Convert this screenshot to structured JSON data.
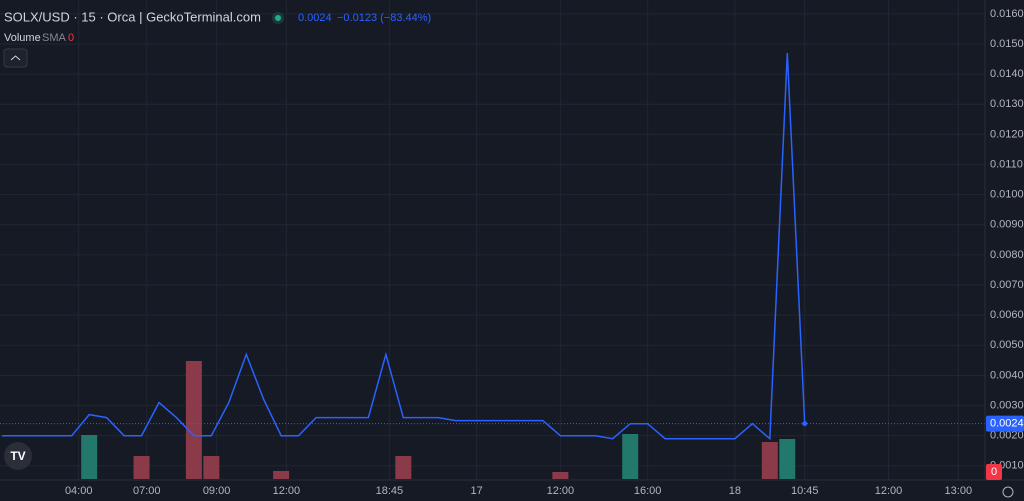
{
  "chart_data": {
    "type": "line",
    "title": "SOLX/USD · 15 · Orca | GeckoTerminal.com",
    "last_value": 0.0024,
    "change_label": "−0.0123 (−83.44%)",
    "volume_label": "Volume",
    "sma_label": "SMA",
    "sma_value": 0,
    "volume_last": 0,
    "x": [
      0,
      4,
      5,
      6,
      7,
      8,
      9,
      10,
      11,
      12,
      13,
      14,
      15,
      16,
      17,
      18,
      19,
      21,
      22,
      23,
      25,
      26,
      30,
      31,
      32,
      34,
      35,
      36,
      37,
      38,
      39,
      42,
      43,
      44,
      45,
      46
    ],
    "series": [
      {
        "color": "#2962ff",
        "values": [
          0.002,
          0.002,
          0.0027,
          0.0026,
          0.002,
          0.002,
          0.0031,
          0.0026,
          0.002,
          0.002,
          0.0031,
          0.0047,
          0.0032,
          0.002,
          0.002,
          0.0026,
          0.0026,
          0.0026,
          0.0047,
          0.0026,
          0.0026,
          0.0025,
          0.0025,
          0.0025,
          0.002,
          0.002,
          0.0019,
          0.0024,
          0.0024,
          0.0019,
          0.0019,
          0.0019,
          0.0024,
          0.0019,
          0.0147,
          0.0024
        ]
      }
    ],
    "volume": {
      "x": [
        5,
        8,
        11,
        12,
        16,
        23,
        32,
        36,
        44,
        45
      ],
      "values": [
        44,
        23,
        118,
        23,
        8,
        23,
        7,
        45,
        37,
        40
      ],
      "colors": [
        "#22786a",
        "#8b3a49",
        "#8b3a49",
        "#8b3a49",
        "#8b3a49",
        "#8b3a49",
        "#8b3a49",
        "#22786a",
        "#8b3a49",
        "#22786a"
      ],
      "vlim": [
        0,
        140
      ]
    },
    "xlim": [
      -0.11,
      56.33
    ],
    "xticks": [
      {
        "value": 4.4,
        "label": "04:00"
      },
      {
        "value": 8.3,
        "label": "07:00"
      },
      {
        "value": 12.3,
        "label": "09:00"
      },
      {
        "value": 16.3,
        "label": "12:00"
      },
      {
        "value": 22.2,
        "label": "18:45"
      },
      {
        "value": 27.2,
        "label": "17"
      },
      {
        "value": 32,
        "label": "12:00"
      },
      {
        "value": 37,
        "label": "16:00"
      },
      {
        "value": 42,
        "label": "18"
      },
      {
        "value": 46,
        "label": "10:45"
      },
      {
        "value": 50.8,
        "label": "12:00"
      },
      {
        "value": 54.8,
        "label": "13:00"
      }
    ],
    "ylim": [
      0.00053,
      0.01646
    ],
    "yticks": [
      {
        "value": 0.001,
        "label": "0.0010"
      },
      {
        "value": 0.002,
        "label": "0.0020"
      },
      {
        "value": 0.003,
        "label": "0.0030"
      },
      {
        "value": 0.004,
        "label": "0.0040"
      },
      {
        "value": 0.005,
        "label": "0.0050"
      },
      {
        "value": 0.006,
        "label": "0.0060"
      },
      {
        "value": 0.007,
        "label": "0.0070"
      },
      {
        "value": 0.008,
        "label": "0.0080"
      },
      {
        "value": 0.009,
        "label": "0.0090"
      },
      {
        "value": 0.01,
        "label": "0.0100"
      },
      {
        "value": 0.011,
        "label": "0.0110"
      },
      {
        "value": 0.012,
        "label": "0.0120"
      },
      {
        "value": 0.013,
        "label": "0.0130"
      },
      {
        "value": 0.014,
        "label": "0.0140"
      },
      {
        "value": 0.015,
        "label": "0.0150"
      },
      {
        "value": 0.016,
        "label": "0.0160"
      }
    ],
    "grid": true
  }
}
